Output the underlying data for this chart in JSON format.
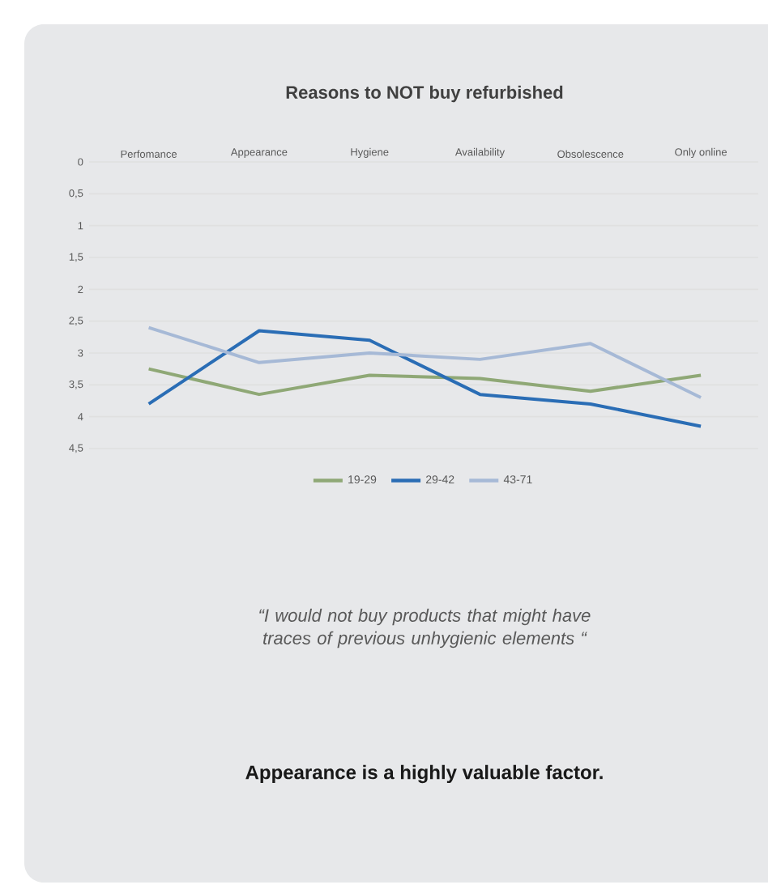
{
  "chart_data": {
    "type": "line",
    "title": "Reasons to NOT buy refurbished",
    "categories": [
      "Perfomance",
      "Appearance",
      "Hygiene",
      "Availability",
      "Obsolescence",
      "Only online"
    ],
    "series": [
      {
        "name": "19-29",
        "color": "#8fa876",
        "values": [
          3.25,
          3.65,
          3.35,
          3.4,
          3.6,
          3.35
        ]
      },
      {
        "name": "29-42",
        "color": "#2a6db5",
        "values": [
          3.8,
          2.65,
          2.8,
          3.65,
          3.8,
          4.15
        ]
      },
      {
        "name": "43-71",
        "color": "#a6b9d6",
        "values": [
          2.6,
          3.15,
          3.0,
          3.1,
          2.85,
          3.7
        ]
      }
    ],
    "ylim": [
      4.5,
      0
    ],
    "yticks": [
      0,
      {
        "value": 0.5,
        "label": "0,5"
      },
      1,
      {
        "value": 1.5,
        "label": "1,5"
      },
      2,
      {
        "value": 2.5,
        "label": "2,5"
      },
      3,
      {
        "value": 3.5,
        "label": "3,5"
      },
      4,
      {
        "value": 4.5,
        "label": "4,5"
      }
    ],
    "grid": "y",
    "legend": "bottom",
    "annotations": [
      "“I would not buy products that might have traces of previous unhygienic elements “",
      "Appearance is a highly valuable factor."
    ]
  }
}
